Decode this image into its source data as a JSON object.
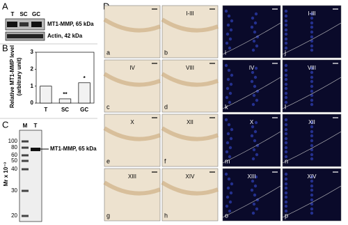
{
  "panel_a": {
    "label": "A",
    "lanes": [
      "T",
      "SC",
      "GC"
    ],
    "bands": [
      "MT1-MMP, 65 kDa",
      "Actin, 42 kDa"
    ]
  },
  "chart_data": {
    "type": "bar",
    "label": "B",
    "y_label": [
      "Relative MT1-MMP level",
      "(arbitrary unit)"
    ],
    "categories": [
      "T",
      "SC",
      "GC"
    ],
    "values": [
      1,
      0.25,
      1.2
    ],
    "color": "#f2f2f2",
    "annotations": [
      "",
      "**",
      "*"
    ],
    "ylim": [
      0,
      3
    ],
    "yticks": [
      0,
      1,
      2,
      3
    ]
  },
  "panel_c": {
    "label": "C",
    "lanes": [
      "M",
      "T"
    ],
    "y_label": "Mr x 10⁻³",
    "markers": [
      "100",
      "80",
      "60",
      "50",
      "40",
      "30",
      "20"
    ],
    "band": "MT1-MMP, 65 kDa"
  },
  "panel_d": {
    "label": "D",
    "panels": [
      {
        "letter": "a"
      },
      {
        "letter": "b",
        "stage": "I-III"
      },
      {
        "letter": "i"
      },
      {
        "letter": "j",
        "stage": "I-III"
      },
      {
        "letter": "c",
        "stage": "IV"
      },
      {
        "letter": "d",
        "stage": "VIII"
      },
      {
        "letter": "k",
        "stage": "IV"
      },
      {
        "letter": "l",
        "stage": "VIII"
      },
      {
        "letter": "e",
        "stage": "X"
      },
      {
        "letter": "f",
        "stage": "XII"
      },
      {
        "letter": "m",
        "stage": "X"
      },
      {
        "letter": "n",
        "stage": "XII"
      },
      {
        "letter": "g",
        "stage": "XIII"
      },
      {
        "letter": "h",
        "stage": "XIV"
      },
      {
        "letter": "o",
        "stage": "XIII"
      },
      {
        "letter": "p",
        "stage": "XIV"
      }
    ]
  }
}
